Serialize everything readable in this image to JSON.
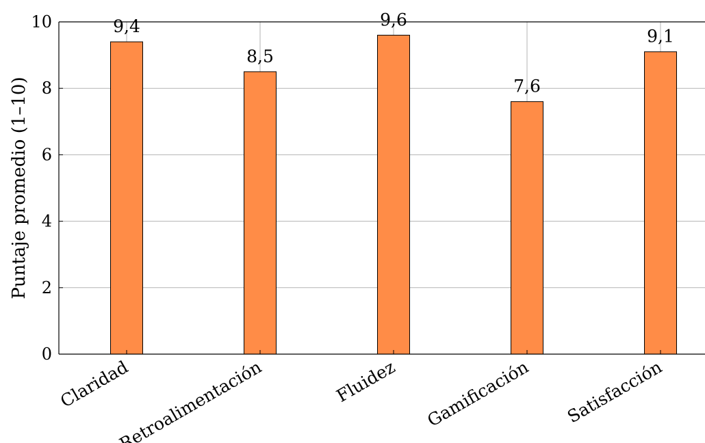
{
  "chart_data": {
    "type": "bar",
    "categories": [
      "Claridad",
      "Retroalimentación",
      "Fluidez",
      "Gamificación",
      "Satisfacción"
    ],
    "values": [
      9.4,
      8.5,
      9.6,
      7.6,
      9.1
    ],
    "value_labels": [
      "9,4",
      "8,5",
      "9,6",
      "7,6",
      "9,1"
    ],
    "title": "",
    "xlabel": "",
    "ylabel": "Puntaje promedio (1–10)",
    "ylim": [
      0,
      10
    ],
    "yticks": [
      0,
      2,
      4,
      6,
      8,
      10
    ],
    "grid": true,
    "bar_color": "#ff8c47",
    "bar_edge_color": "#000000",
    "grid_color": "#b3b3b3"
  }
}
